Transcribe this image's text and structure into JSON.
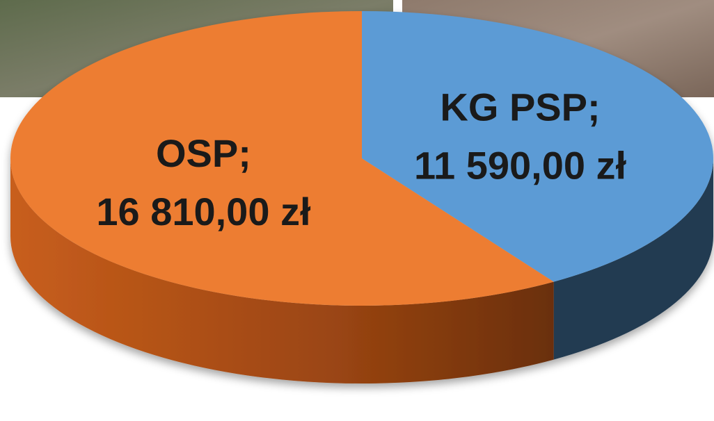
{
  "chart_data": {
    "type": "pie",
    "categories": [
      "KG PSP;",
      "OSP;"
    ],
    "values": [
      11590,
      16810
    ],
    "value_labels": [
      "11 590,00 zł",
      "16 810,00 zł"
    ],
    "colors": [
      "#5b9bd5",
      "#ed7d31"
    ]
  }
}
